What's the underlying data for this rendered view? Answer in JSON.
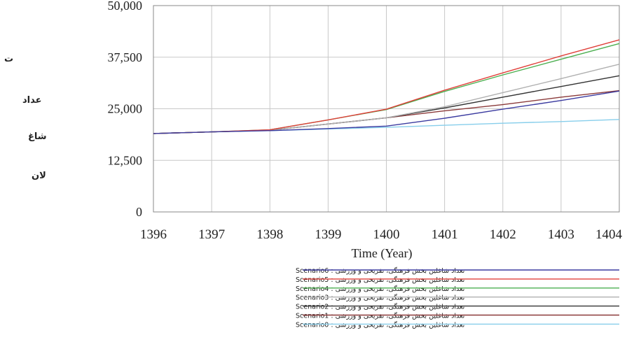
{
  "chart_data": {
    "type": "line",
    "xlabel": "Time (Year)",
    "ylabel_fragments": [
      "ت",
      "عداد",
      "شاغ",
      "لان"
    ],
    "x": [
      1396,
      1397,
      1398,
      1399,
      1400,
      1401,
      1402,
      1403,
      1404
    ],
    "x_ticks": [
      "1396",
      "1397",
      "1398",
      "1399",
      "1400",
      "1401",
      "1402",
      "1403",
      "1404"
    ],
    "y_ticks": [
      "0",
      "12,500",
      "25,000",
      "37,500",
      "50,000"
    ],
    "ylim": [
      0,
      50000
    ],
    "xlim": [
      1396,
      1404
    ],
    "grid": true,
    "legend_position": "bottom",
    "series": [
      {
        "name": "Scenario6",
        "legend_label": "تعداد شاغلین بخش فرهنگی، تفریحی و ورزشی : Scenario6",
        "color": "#3b3ba0",
        "values": [
          19000,
          19400,
          19700,
          20200,
          20800,
          22700,
          24900,
          27000,
          29300
        ]
      },
      {
        "name": "Scenario5",
        "legend_label": "تعداد شاغلین بخش فرهنگی، تفریحی و ورزشی : Scenario5",
        "color": "#e0403a",
        "values": [
          19000,
          19400,
          19900,
          22300,
          24900,
          29500,
          33700,
          37800,
          41700
        ]
      },
      {
        "name": "Scenario4",
        "legend_label": "تعداد شاغلین بخش فرهنگی، تفریحی و ورزشی : Scenario4",
        "color": "#4caf50",
        "values": [
          19000,
          19400,
          19900,
          22300,
          24800,
          29200,
          33200,
          37000,
          40800
        ]
      },
      {
        "name": "Scenario3",
        "legend_label": "تعداد شاغلین بخش فرهنگی، تفریحی و ورزشی : Scenario3",
        "color": "#b0b0b0",
        "values": [
          19000,
          19400,
          19800,
          21300,
          22800,
          25500,
          28900,
          32300,
          35800
        ]
      },
      {
        "name": "Scenario2",
        "legend_label": "تعداد شاغلین بخش فرهنگی، تفریحی و ورزشی : Scenario2",
        "color": "#333333",
        "values": [
          19000,
          19400,
          19800,
          21300,
          22800,
          25200,
          27800,
          30400,
          33000
        ]
      },
      {
        "name": "Scenario1",
        "legend_label": "تعداد شاغلین بخش فرهنگی، تفریحی و ورزشی : Scenario1",
        "color": "#8b3a3a",
        "values": [
          19000,
          19400,
          19800,
          21300,
          22800,
          24500,
          26000,
          27800,
          29400
        ]
      },
      {
        "name": "Scenario0",
        "legend_label": "تعداد شاغلین بخش فرهنگی، تفریحی و ورزشی : Scenario0",
        "color": "#87ceeb",
        "values": [
          19000,
          19400,
          19700,
          20100,
          20500,
          21000,
          21500,
          21900,
          22400
        ]
      }
    ]
  }
}
